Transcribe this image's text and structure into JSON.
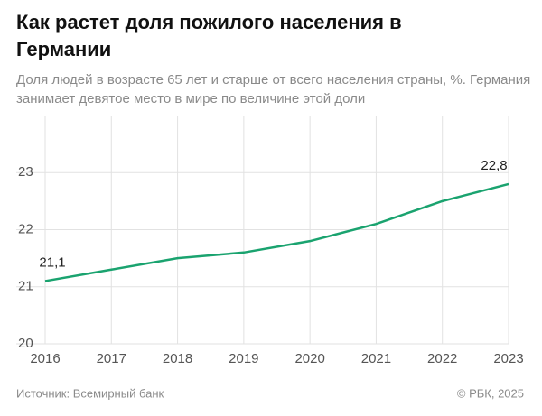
{
  "chart_data": {
    "type": "line",
    "title": "Как растет доля пожилого населения в Германии",
    "subtitle": "Доля людей в возрасте 65 лет и старше от всего населения страны, %. Германия занимает девятое место в мире по величине этой доли",
    "categories": [
      "2016",
      "2017",
      "2018",
      "2019",
      "2020",
      "2021",
      "2022",
      "2023"
    ],
    "series": [
      {
        "name": "Германия",
        "color": "#1aa36f",
        "values": [
          21.1,
          21.3,
          21.5,
          21.6,
          21.8,
          22.1,
          22.5,
          22.8
        ],
        "value_labels": [
          "21,1",
          null,
          null,
          null,
          null,
          null,
          null,
          "22,8"
        ]
      }
    ],
    "ylim": [
      20,
      24
    ],
    "yticks": [
      20,
      21,
      22,
      23
    ],
    "grid": true,
    "source": "Источник: Всемирный банк",
    "credit": "© РБК, 2025"
  }
}
